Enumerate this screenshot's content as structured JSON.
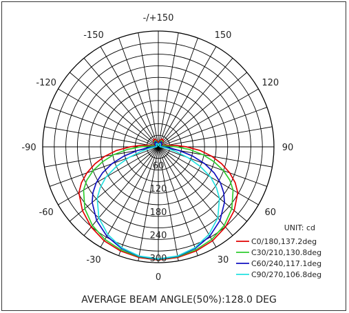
{
  "chart_data": {
    "type": "polar",
    "unit_label": "UNIT: cd",
    "footer": "AVERAGE BEAM ANGLE(50%):128.0 DEG",
    "radial_ticks": [
      60,
      120,
      180,
      240,
      300
    ],
    "radial_max": 300,
    "angle_labels": [
      {
        "text": "-/+150",
        "angle": 180
      },
      {
        "text": "150",
        "angle": 150
      },
      {
        "text": "120",
        "angle": 120
      },
      {
        "text": "90",
        "angle": 90
      },
      {
        "text": "60",
        "angle": 60
      },
      {
        "text": "30",
        "angle": 30
      },
      {
        "text": "0",
        "angle": 0
      },
      {
        "text": "-30",
        "angle": -30
      },
      {
        "text": "-60",
        "angle": -60
      },
      {
        "text": "-90",
        "angle": -90
      },
      {
        "text": "-120",
        "angle": -120
      },
      {
        "text": "-150",
        "angle": -150
      }
    ],
    "series": [
      {
        "name": "C0/180,137.2deg",
        "color": "#e00000",
        "angles": [
          0,
          10,
          20,
          30,
          40,
          50,
          60,
          65,
          70,
          75,
          80,
          85,
          90,
          95,
          100,
          110,
          120,
          130,
          140,
          150,
          160,
          170,
          180
        ],
        "values": [
          293,
          291,
          287,
          281,
          271,
          257,
          238,
          220,
          197,
          170,
          141,
          109,
          73,
          45,
          25,
          12,
          8,
          12,
          20,
          23,
          20,
          14,
          8
        ]
      },
      {
        "name": "C30/210,130.8deg",
        "color": "#2ecc2e",
        "angles": [
          0,
          10,
          20,
          30,
          40,
          50,
          60,
          65,
          70,
          75,
          80,
          85,
          90,
          95,
          100,
          110,
          120,
          130,
          140,
          150,
          160,
          170,
          180
        ],
        "values": [
          292,
          289,
          284,
          277,
          266,
          249,
          224,
          205,
          180,
          150,
          118,
          82,
          47,
          25,
          15,
          8,
          6,
          10,
          16,
          18,
          15,
          10,
          6
        ]
      },
      {
        "name": "C60/240,117.1deg",
        "color": "#1010c0",
        "angles": [
          0,
          10,
          20,
          30,
          40,
          50,
          55,
          60,
          65,
          70,
          75,
          80,
          85,
          90,
          100,
          110,
          120,
          130,
          140,
          150,
          160,
          170,
          180
        ],
        "values": [
          291,
          288,
          280,
          267,
          249,
          224,
          207,
          186,
          160,
          128,
          92,
          55,
          28,
          13,
          8,
          6,
          8,
          11,
          14,
          15,
          13,
          8,
          4
        ]
      },
      {
        "name": "C90/270,106.8deg",
        "color": "#22e0e0",
        "angles": [
          0,
          10,
          20,
          30,
          40,
          50,
          55,
          60,
          65,
          70,
          75,
          80,
          85,
          90,
          100,
          110,
          120,
          130,
          140,
          150,
          160,
          170,
          180
        ],
        "values": [
          290,
          287,
          278,
          262,
          240,
          207,
          184,
          157,
          120,
          82,
          48,
          24,
          12,
          6,
          4,
          4,
          5,
          7,
          9,
          10,
          9,
          6,
          3
        ]
      }
    ]
  }
}
